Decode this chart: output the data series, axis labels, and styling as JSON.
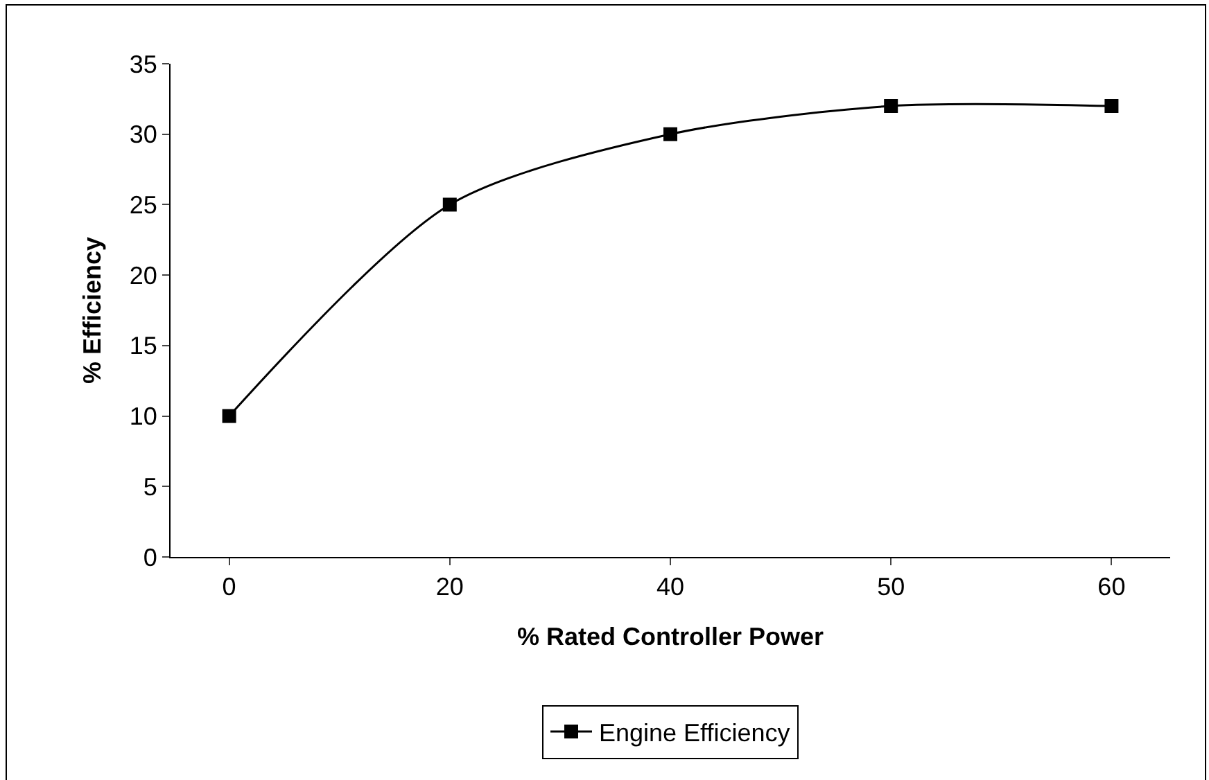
{
  "chart_data": {
    "type": "line",
    "xlabel": "% Rated Controller Power",
    "ylabel": "% Efficiency",
    "categories": [
      "0",
      "20",
      "40",
      "50",
      "60"
    ],
    "series": [
      {
        "name": "Engine Efficiency",
        "color": "#000000",
        "values": [
          10,
          25,
          30,
          32,
          32
        ]
      }
    ],
    "ylim": [
      0,
      35
    ],
    "yticks": [
      0,
      5,
      10,
      15,
      20,
      25,
      30,
      35
    ],
    "grid": false,
    "legend": "bottom",
    "marker": "square",
    "line_style": "solid"
  }
}
